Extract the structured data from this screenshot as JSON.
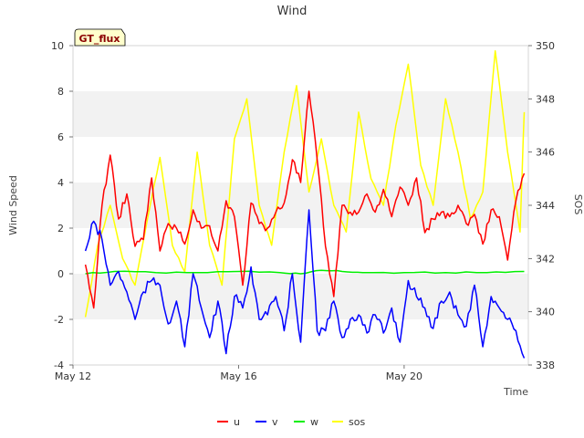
{
  "chart_data": {
    "type": "line",
    "title": "Wind",
    "xlabel": "Time",
    "ylabel": "Wind Speed",
    "y2label": "SOS",
    "badge": "GT_flux",
    "xlim": [
      0,
      11
    ],
    "ylim": [
      -4,
      10
    ],
    "y2lim": [
      338,
      350
    ],
    "x_ticks": [
      {
        "x": 0,
        "label": "May 12"
      },
      {
        "x": 4,
        "label": "May 16"
      },
      {
        "x": 8,
        "label": "May 20"
      }
    ],
    "y_ticks": [
      -4,
      -2,
      0,
      2,
      4,
      6,
      8,
      10
    ],
    "y2_ticks": [
      338,
      340,
      342,
      344,
      346,
      348,
      350
    ],
    "bands": [
      [
        -2,
        0
      ],
      [
        2,
        4
      ],
      [
        6,
        8
      ]
    ],
    "legend_position": "bottom-center",
    "series": [
      {
        "name": "u",
        "color": "#ff0000",
        "axis": "left",
        "x": [
          0.3,
          0.5,
          0.7,
          0.9,
          1.1,
          1.3,
          1.5,
          1.7,
          1.9,
          2.1,
          2.3,
          2.5,
          2.7,
          2.9,
          3.1,
          3.3,
          3.5,
          3.7,
          3.9,
          4.1,
          4.3,
          4.5,
          4.7,
          4.9,
          5.1,
          5.3,
          5.5,
          5.7,
          5.9,
          6.1,
          6.3,
          6.5,
          6.7,
          6.9,
          7.1,
          7.3,
          7.5,
          7.7,
          7.9,
          8.1,
          8.3,
          8.5,
          8.7,
          8.9,
          9.1,
          9.3,
          9.5,
          9.7,
          9.9,
          10.1,
          10.3,
          10.5,
          10.7,
          10.9
        ],
        "values": [
          0.4,
          -1.5,
          3.0,
          5.2,
          2.4,
          3.5,
          1.2,
          1.5,
          4.2,
          1.0,
          2.2,
          2.0,
          1.3,
          2.8,
          2.0,
          2.1,
          1.0,
          3.2,
          2.5,
          -0.5,
          3.1,
          2.2,
          2.0,
          2.7,
          3.1,
          5.0,
          4.0,
          8.0,
          5.0,
          1.2,
          -1.0,
          3.0,
          2.7,
          2.7,
          3.5,
          2.7,
          3.7,
          2.5,
          3.8,
          3.0,
          4.2,
          1.8,
          2.4,
          2.7,
          2.5,
          3.0,
          2.2,
          2.6,
          1.3,
          2.8,
          2.5,
          0.6,
          3.2,
          4.4
        ]
      },
      {
        "name": "v",
        "color": "#0000ff",
        "axis": "left",
        "x": [
          0.3,
          0.5,
          0.7,
          0.9,
          1.1,
          1.3,
          1.5,
          1.7,
          1.9,
          2.1,
          2.3,
          2.5,
          2.7,
          2.9,
          3.1,
          3.3,
          3.5,
          3.7,
          3.9,
          4.1,
          4.3,
          4.5,
          4.7,
          4.9,
          5.1,
          5.3,
          5.5,
          5.7,
          5.9,
          6.1,
          6.3,
          6.5,
          6.7,
          6.9,
          7.1,
          7.3,
          7.5,
          7.7,
          7.9,
          8.1,
          8.3,
          8.5,
          8.7,
          8.9,
          9.1,
          9.3,
          9.5,
          9.7,
          9.9,
          10.1,
          10.3,
          10.5,
          10.7,
          10.9
        ],
        "values": [
          1.0,
          2.3,
          1.5,
          -0.5,
          0.1,
          -0.8,
          -2.0,
          -0.8,
          -0.3,
          -0.5,
          -2.2,
          -1.2,
          -3.2,
          0.0,
          -1.5,
          -2.8,
          -1.2,
          -3.5,
          -1.0,
          -1.5,
          0.3,
          -2.0,
          -1.8,
          -1.0,
          -2.5,
          0.0,
          -3.0,
          2.8,
          -2.5,
          -2.5,
          -1.2,
          -2.8,
          -2.0,
          -1.8,
          -2.6,
          -1.8,
          -2.6,
          -1.5,
          -3.0,
          -0.3,
          -1.0,
          -1.5,
          -2.4,
          -1.2,
          -0.8,
          -1.8,
          -2.3,
          -0.5,
          -3.2,
          -1.0,
          -1.5,
          -2.0,
          -2.5,
          -3.7
        ]
      },
      {
        "name": "w",
        "color": "#00ee00",
        "axis": "left",
        "x": [
          0.3,
          1.0,
          2.0,
          3.0,
          4.0,
          5.0,
          5.5,
          6.0,
          6.5,
          7.0,
          8.0,
          9.0,
          10.0,
          10.9
        ],
        "values": [
          0.0,
          0.1,
          0.05,
          0.05,
          0.1,
          0.05,
          0.0,
          0.15,
          0.1,
          0.05,
          0.05,
          0.05,
          0.05,
          0.1
        ]
      },
      {
        "name": "sos",
        "color": "#ffff00",
        "axis": "right",
        "x": [
          0.3,
          0.6,
          0.9,
          1.2,
          1.5,
          1.8,
          2.1,
          2.4,
          2.7,
          3.0,
          3.3,
          3.6,
          3.9,
          4.2,
          4.5,
          4.8,
          5.1,
          5.4,
          5.7,
          6.0,
          6.3,
          6.6,
          6.9,
          7.2,
          7.5,
          7.8,
          8.1,
          8.4,
          8.7,
          9.0,
          9.3,
          9.6,
          9.9,
          10.2,
          10.5,
          10.8,
          10.9
        ],
        "values": [
          339.8,
          342.5,
          344.0,
          342.0,
          341.0,
          343.5,
          345.8,
          342.5,
          341.5,
          346.0,
          342.5,
          341.0,
          346.5,
          348.0,
          344.0,
          342.5,
          346.0,
          348.5,
          344.5,
          346.5,
          344.0,
          343.0,
          347.5,
          345.0,
          344.0,
          347.0,
          349.3,
          345.5,
          344.0,
          348.0,
          346.0,
          343.5,
          344.5,
          349.8,
          346.0,
          343.0,
          347.5
        ]
      }
    ]
  }
}
